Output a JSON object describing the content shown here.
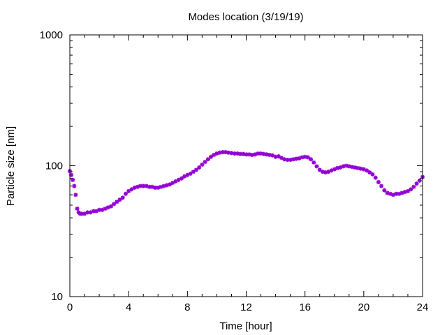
{
  "chart_data": {
    "type": "scatter",
    "title": "Modes location (3/19/19)",
    "xlabel": "Time [hour]",
    "ylabel": "Particle size [nm]",
    "xlim": [
      0,
      24
    ],
    "ylim": [
      10,
      1000
    ],
    "yscale": "log",
    "grid": false,
    "legend": "none",
    "x_ticks": [
      {
        "value": 0,
        "label": "0"
      },
      {
        "value": 4,
        "label": "4"
      },
      {
        "value": 8,
        "label": "8"
      },
      {
        "value": 12,
        "label": "12"
      },
      {
        "value": 16,
        "label": "16"
      },
      {
        "value": 20,
        "label": "20"
      },
      {
        "value": 24,
        "label": "24"
      }
    ],
    "y_ticks": [
      {
        "value": 10,
        "label": "10"
      },
      {
        "value": 100,
        "label": "100"
      },
      {
        "value": 1000,
        "label": "1000"
      }
    ],
    "series": [
      {
        "color": "#9400d3",
        "marker": "star",
        "points": [
          [
            0.0,
            91
          ],
          [
            0.1,
            85
          ],
          [
            0.2,
            78
          ],
          [
            0.3,
            70
          ],
          [
            0.4,
            60
          ],
          [
            0.5,
            47
          ],
          [
            0.6,
            44
          ],
          [
            0.7,
            43
          ],
          [
            0.8,
            43
          ],
          [
            1.0,
            43
          ],
          [
            1.2,
            44
          ],
          [
            1.4,
            44
          ],
          [
            1.6,
            45
          ],
          [
            1.8,
            45
          ],
          [
            2.0,
            46
          ],
          [
            2.2,
            46
          ],
          [
            2.4,
            47
          ],
          [
            2.6,
            48
          ],
          [
            2.8,
            49
          ],
          [
            3.0,
            51
          ],
          [
            3.2,
            53
          ],
          [
            3.4,
            55
          ],
          [
            3.6,
            57
          ],
          [
            3.8,
            61
          ],
          [
            4.0,
            64
          ],
          [
            4.2,
            66
          ],
          [
            4.4,
            68
          ],
          [
            4.6,
            69
          ],
          [
            4.8,
            70
          ],
          [
            5.0,
            70
          ],
          [
            5.2,
            70
          ],
          [
            5.4,
            69
          ],
          [
            5.6,
            69
          ],
          [
            5.8,
            68
          ],
          [
            6.0,
            68
          ],
          [
            6.2,
            69
          ],
          [
            6.4,
            70
          ],
          [
            6.6,
            71
          ],
          [
            6.8,
            72
          ],
          [
            7.0,
            74
          ],
          [
            7.2,
            76
          ],
          [
            7.4,
            78
          ],
          [
            7.6,
            80
          ],
          [
            7.8,
            83
          ],
          [
            8.0,
            85
          ],
          [
            8.2,
            87
          ],
          [
            8.4,
            90
          ],
          [
            8.6,
            93
          ],
          [
            8.8,
            97
          ],
          [
            9.0,
            102
          ],
          [
            9.2,
            107
          ],
          [
            9.4,
            112
          ],
          [
            9.6,
            117
          ],
          [
            9.8,
            121
          ],
          [
            10.0,
            124
          ],
          [
            10.2,
            126
          ],
          [
            10.4,
            127
          ],
          [
            10.6,
            127
          ],
          [
            10.8,
            126
          ],
          [
            11.0,
            125
          ],
          [
            11.2,
            124
          ],
          [
            11.4,
            124
          ],
          [
            11.6,
            123
          ],
          [
            11.8,
            123
          ],
          [
            12.0,
            122
          ],
          [
            12.2,
            122
          ],
          [
            12.4,
            121
          ],
          [
            12.6,
            122
          ],
          [
            12.8,
            124
          ],
          [
            13.0,
            124
          ],
          [
            13.2,
            123
          ],
          [
            13.4,
            122
          ],
          [
            13.6,
            121
          ],
          [
            13.8,
            120
          ],
          [
            14.0,
            117
          ],
          [
            14.2,
            118
          ],
          [
            14.4,
            115
          ],
          [
            14.6,
            112
          ],
          [
            14.8,
            111
          ],
          [
            15.0,
            111
          ],
          [
            15.2,
            112
          ],
          [
            15.4,
            113
          ],
          [
            15.6,
            114
          ],
          [
            15.8,
            116
          ],
          [
            16.0,
            117
          ],
          [
            16.2,
            116
          ],
          [
            16.4,
            112
          ],
          [
            16.6,
            106
          ],
          [
            16.8,
            99
          ],
          [
            17.0,
            93
          ],
          [
            17.2,
            90
          ],
          [
            17.4,
            89
          ],
          [
            17.6,
            90
          ],
          [
            17.8,
            92
          ],
          [
            18.0,
            94
          ],
          [
            18.2,
            96
          ],
          [
            18.4,
            97
          ],
          [
            18.6,
            99
          ],
          [
            18.8,
            100
          ],
          [
            19.0,
            99
          ],
          [
            19.2,
            98
          ],
          [
            19.4,
            97
          ],
          [
            19.6,
            96
          ],
          [
            19.8,
            95
          ],
          [
            20.0,
            94
          ],
          [
            20.2,
            92
          ],
          [
            20.4,
            89
          ],
          [
            20.6,
            86
          ],
          [
            20.8,
            81
          ],
          [
            21.0,
            75
          ],
          [
            21.2,
            70
          ],
          [
            21.4,
            65
          ],
          [
            21.6,
            62
          ],
          [
            21.8,
            61
          ],
          [
            22.0,
            60
          ],
          [
            22.2,
            61
          ],
          [
            22.4,
            61
          ],
          [
            22.6,
            62
          ],
          [
            22.8,
            63
          ],
          [
            23.0,
            64
          ],
          [
            23.2,
            66
          ],
          [
            23.4,
            69
          ],
          [
            23.6,
            73
          ],
          [
            23.8,
            77
          ],
          [
            24.0,
            82
          ]
        ]
      }
    ]
  }
}
